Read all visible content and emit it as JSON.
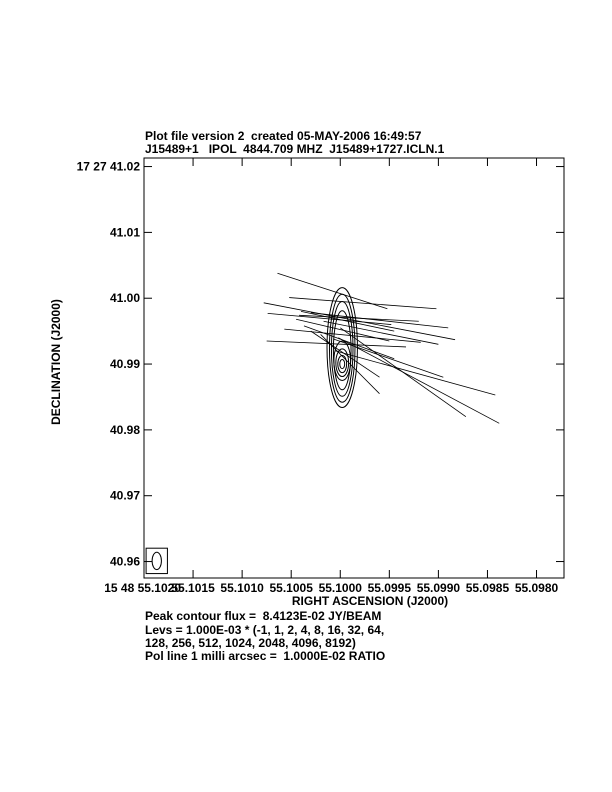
{
  "header": {
    "line1": "Plot file version 2  created 05-MAY-2006 16:49:57",
    "line2": "J15489+1   IPOL  4844.709 MHZ  J15489+1727.ICLN.1"
  },
  "footer": {
    "peak": "Peak contour flux =  8.4123E-02 JY/BEAM",
    "levs1": "Levs = 1.000E-03 * (-1, 1, 2, 4, 8, 16, 32, 64,",
    "levs2": "128, 256, 512, 1024, 2048, 4096, 8192)",
    "pol": "Pol line 1 milli arcsec =  1.0000E-02 RATIO"
  },
  "chart_data": {
    "type": "contour",
    "xlabel": "RIGHT ASCENSION (J2000)",
    "ylabel": "DECLINATION (J2000)",
    "x_ticks": [
      {
        "label": "15 48 55.1020",
        "value": 55.102
      },
      {
        "label": "55.1015",
        "value": 55.1015
      },
      {
        "label": "55.1010",
        "value": 55.101
      },
      {
        "label": "55.1005",
        "value": 55.1005
      },
      {
        "label": "55.1000",
        "value": 55.1
      },
      {
        "label": "55.0995",
        "value": 55.0995
      },
      {
        "label": "55.0990",
        "value": 55.099
      },
      {
        "label": "55.0985",
        "value": 55.0985
      },
      {
        "label": "55.0980",
        "value": 55.098
      }
    ],
    "y_ticks": [
      {
        "label": "17 27 41.02",
        "value": 41.02
      },
      {
        "label": "41.01",
        "value": 41.01
      },
      {
        "label": "41.00",
        "value": 41.0
      },
      {
        "label": "40.99",
        "value": 40.99
      },
      {
        "label": "40.98",
        "value": 40.98
      },
      {
        "label": "40.97",
        "value": 40.97
      },
      {
        "label": "40.96",
        "value": 40.96
      }
    ],
    "xlim": [
      55.102,
      55.09772
    ],
    "ylim": [
      40.9575,
      41.0213
    ],
    "beam": {
      "ra": 55.10187,
      "dec": 40.9601,
      "ra_halfwidth": 4.75e-05,
      "dec_halfheight": 0.00132
    },
    "contours": [
      {
        "ra": 55.09998,
        "dec": 40.9925,
        "ra_hw": 0.000155,
        "dec_hh": 0.0091
      },
      {
        "ra": 55.09998,
        "dec": 40.9924,
        "ra_hw": 0.00013,
        "dec_hh": 0.0082
      },
      {
        "ra": 55.09998,
        "dec": 40.9923,
        "ra_hw": 0.00011,
        "dec_hh": 0.0072
      },
      {
        "ra": 55.09998,
        "dec": 40.9921,
        "ra_hw": 9e-05,
        "dec_hh": 0.006
      },
      {
        "ra": 55.09998,
        "dec": 40.9905,
        "ra_hw": 8.5e-05,
        "dec_hh": 0.003
      },
      {
        "ra": 55.09998,
        "dec": 40.9902,
        "ra_hw": 6.5e-05,
        "dec_hh": 0.0021
      },
      {
        "ra": 55.09998,
        "dec": 40.99,
        "ra_hw": 4.5e-05,
        "dec_hh": 0.0013
      },
      {
        "ra": 55.09998,
        "dec": 40.99,
        "ra_hw": 2.5e-05,
        "dec_hh": 0.0007
      }
    ],
    "pol_vectors": [
      {
        "ra1": 55.10064,
        "dec1": 41.0038,
        "ra2": 55.09952,
        "dec2": 40.9984
      },
      {
        "ra1": 55.10078,
        "dec1": 40.9993,
        "ra2": 55.09883,
        "dec2": 40.9937
      },
      {
        "ra1": 55.10074,
        "dec1": 40.9977,
        "ra2": 55.09948,
        "dec2": 40.996
      },
      {
        "ra1": 55.10057,
        "dec1": 40.9953,
        "ra2": 55.09918,
        "dec2": 40.9933
      },
      {
        "ra1": 55.10075,
        "dec1": 40.9935,
        "ra2": 55.09933,
        "dec2": 40.9926
      },
      {
        "ra1": 55.10052,
        "dec1": 41.0001,
        "ra2": 55.09902,
        "dec2": 40.9984
      },
      {
        "ra1": 55.10042,
        "dec1": 40.9974,
        "ra2": 55.0992,
        "dec2": 40.9965
      },
      {
        "ra1": 55.1004,
        "dec1": 40.998,
        "ra2": 55.09945,
        "dec2": 40.995
      },
      {
        "ra1": 55.10045,
        "dec1": 40.9968,
        "ra2": 55.0995,
        "dec2": 40.9935
      },
      {
        "ra1": 55.10037,
        "dec1": 40.9958,
        "ra2": 55.09945,
        "dec2": 40.9908
      },
      {
        "ra1": 55.1003,
        "dec1": 40.995,
        "ra2": 55.0996,
        "dec2": 40.988
      },
      {
        "ra1": 55.1002,
        "dec1": 40.9945,
        "ra2": 55.0996,
        "dec2": 40.9855
      },
      {
        "ra1": 55.10007,
        "dec1": 40.9938,
        "ra2": 55.09895,
        "dec2": 40.988
      },
      {
        "ra1": 55.1,
        "dec1": 40.9955,
        "ra2": 55.09872,
        "dec2": 40.982
      },
      {
        "ra1": 55.10005,
        "dec1": 40.992,
        "ra2": 55.09842,
        "dec2": 40.9853
      },
      {
        "ra1": 55.10017,
        "dec1": 40.9965,
        "ra2": 55.099,
        "dec2": 40.993
      },
      {
        "ra1": 55.1003,
        "dec1": 40.9978,
        "ra2": 55.0989,
        "dec2": 40.9955
      },
      {
        "ra1": 55.10002,
        "dec1": 40.994,
        "ra2": 55.09838,
        "dec2": 40.981
      }
    ]
  }
}
